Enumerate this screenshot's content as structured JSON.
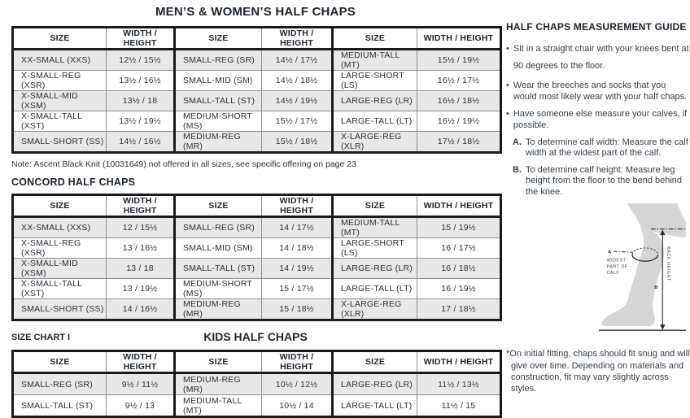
{
  "title": "MEN’S & WOMEN’S HALF CHAPS",
  "note": "Note: Ascent Black Knit (10031649) not offered in all sizes, see specific offering on page 23",
  "sections": {
    "concord": "CONCORD HALF CHAPS",
    "size_chart_label": "SIZE CHART I",
    "kids": "KIDS HALF CHAPS"
  },
  "tables": {
    "column_headers": [
      "SIZE",
      "WIDTH / HEIGHT"
    ],
    "mens_womens": {
      "rows": [
        [
          "XX-SMALL (XXS)",
          "12½ / 15½",
          "SMALL-REG (SR)",
          "14½ / 17½",
          "MEDIUM-TALL (MT)",
          "15½ / 19½"
        ],
        [
          "X-SMALL-REG (XSR)",
          "13½ / 16½",
          "SMALL-MID (SM)",
          "14½ / 18½",
          "LARGE-SHORT (LS)",
          "16½ / 17½"
        ],
        [
          "X-SMALL-MID (XSM)",
          "13½ / 18",
          "SMALL-TALL (ST)",
          "14½ / 19½",
          "LARGE-REG (LR)",
          "16½ / 18½"
        ],
        [
          "X-SMALL-TALL (XST)",
          "13½ / 19½",
          "MEDIUM-SHORT (MS)",
          "15½ / 17½",
          "LARGE-TALL (LT)",
          "16½ / 19½"
        ],
        [
          "SMALL-SHORT (SS)",
          "14½ / 16½",
          "MEDIUM-REG (MR)",
          "15½ / 18½",
          "X-LARGE-REG (XLR)",
          "17½ / 18½"
        ]
      ]
    },
    "concord": {
      "rows": [
        [
          "XX-SMALL (XXS)",
          "12 / 15½",
          "SMALL-REG (SR)",
          "14 / 17½",
          "MEDIUM-TALL (MT)",
          "15 / 19½"
        ],
        [
          "X-SMALL-REG (XSR)",
          "13 / 16½",
          "SMALL-MID (SM)",
          "14 / 18½",
          "LARGE-SHORT (LS)",
          "16 / 17½"
        ],
        [
          "X-SMALL-MID (XSM)",
          "13 / 18",
          "SMALL-TALL (ST)",
          "14 / 19½",
          "LARGE-REG (LR)",
          "16 / 18½"
        ],
        [
          "X-SMALL-TALL (XST)",
          "13 / 19½",
          "MEDIUM-SHORT (MS)",
          "15 / 17½",
          "LARGE-TALL (LT)",
          "16 / 19½"
        ],
        [
          "SMALL-SHORT (SS)",
          "14 / 16½",
          "MEDIUM-REG (MR)",
          "15 / 18½",
          "X-LARGE-REG (XLR)",
          "17 / 18½"
        ]
      ]
    },
    "kids": {
      "rows": [
        [
          "SMALL-REG (SR)",
          "9½ / 11½",
          "MEDIUM-REG (MR)",
          "10½ / 12½",
          "LARGE-REG (LR)",
          "11½ / 13½"
        ],
        [
          "SMALL-TALL (ST)",
          "9½ / 13",
          "MEDIUM-TALL (MT)",
          "10½ / 14",
          "LARGE-TALL (LT)",
          "11½ / 15"
        ]
      ]
    }
  },
  "guide": {
    "heading": "HALF CHAPS MEASUREMENT GUIDE",
    "bullet_glyph": "•",
    "bullets": [
      "Sit in a straight chair with your knees bent at 90 degrees to the floor.",
      "Wear the breeches and socks that you would most likely wear with your half chaps.",
      "Have someone else measure your calves, if possible."
    ],
    "lettered": [
      {
        "letter": "A.",
        "text": "To determine calf width: Measure the calf width at the widest part of the calf."
      },
      {
        "letter": "B.",
        "text": "To determine calf height: Measure leg height from the floor to the bend behind the knee."
      }
    ],
    "footnote": "*On initial fitting, chaps should fit snug and will give over time. Depending on materials and construction, fit may vary slightly across styles."
  },
  "diagram": {
    "label_a": "A",
    "label_b": "B",
    "widest_line1": "WIDEST",
    "widest_line2": "PART OF",
    "widest_line3": "CALF",
    "back_height_label": "BACK HEIGHT"
  },
  "colors": {
    "text": "#2a3038",
    "heading": "#1d232b",
    "row_stripe": "#e8e8e8",
    "border_heavy": "#1a1a1a",
    "border_light": "#8d8d8d",
    "leg_fill": "#d6d6d6",
    "diagram_line": "#2b2b2b"
  }
}
